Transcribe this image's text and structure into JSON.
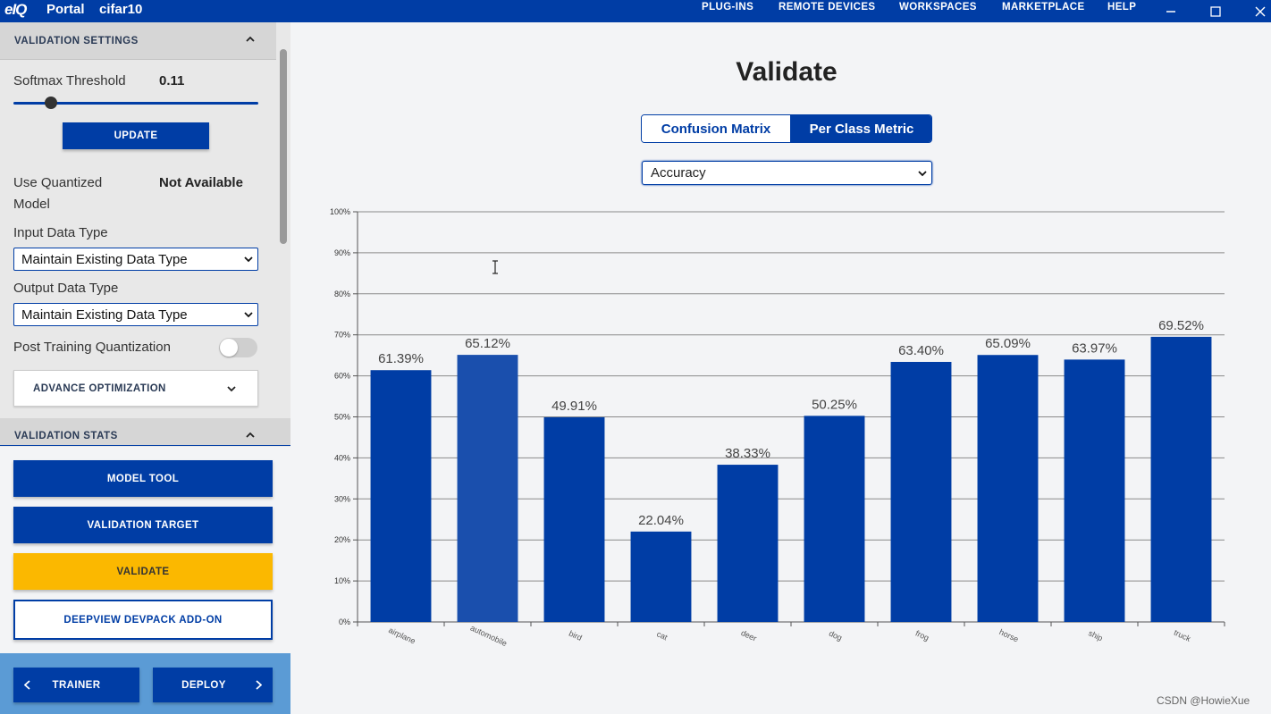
{
  "topbar": {
    "logo": "eIQ",
    "app_name": "Portal",
    "project_name": "cifar10",
    "nav": [
      "PLUG-INS",
      "REMOTE DEVICES",
      "WORKSPACES",
      "MARKETPLACE",
      "HELP"
    ]
  },
  "sidebar": {
    "validation_settings": {
      "header": "VALIDATION SETTINGS",
      "softmax_label": "Softmax Threshold",
      "softmax_value": "0.11",
      "softmax_fraction": 0.11,
      "update_label": "UPDATE",
      "use_quantized_label_1": "Use Quantized",
      "use_quantized_label_2": "Model",
      "use_quantized_value": "Not Available",
      "input_type_label": "Input Data Type",
      "input_type_value": "Maintain Existing Data Type",
      "output_type_label": "Output Data Type",
      "output_type_value": "Maintain Existing Data Type",
      "ptq_label": "Post Training Quantization",
      "advance_label": "ADVANCE OPTIMIZATION"
    },
    "validation_stats": {
      "header": "VALIDATION STATS",
      "model_tool": "MODEL TOOL",
      "validation_target": "VALIDATION TARGET",
      "validate": "VALIDATE",
      "deepview": "DEEPVIEW DEVPACK ADD-ON"
    },
    "footer": {
      "trainer": "TRAINER",
      "deploy": "DEPLOY"
    }
  },
  "main": {
    "title": "Validate",
    "tabs": [
      "Confusion Matrix",
      "Per Class Metric"
    ],
    "metric_value": "Accuracy"
  },
  "chart_data": {
    "type": "bar",
    "categories": [
      "airplane",
      "automobile",
      "bird",
      "cat",
      "deer",
      "dog",
      "frog",
      "horse",
      "ship",
      "truck"
    ],
    "values": [
      61.39,
      65.12,
      49.91,
      22.04,
      38.33,
      50.25,
      63.4,
      65.09,
      63.97,
      69.52
    ],
    "value_labels": [
      "61.39%",
      "65.12%",
      "49.91%",
      "22.04%",
      "38.33%",
      "50.25%",
      "63.40%",
      "65.09%",
      "63.97%",
      "69.52%"
    ],
    "yticks": [
      "0%",
      "10%",
      "20%",
      "30%",
      "40%",
      "50%",
      "60%",
      "70%",
      "80%",
      "90%",
      "100%"
    ],
    "ylim": [
      0,
      100
    ],
    "title": "",
    "xlabel": "",
    "ylabel": "",
    "bar_color": "#003da5",
    "highlight_color": "#1a4fad"
  },
  "watermark": "CSDN @HowieXue"
}
